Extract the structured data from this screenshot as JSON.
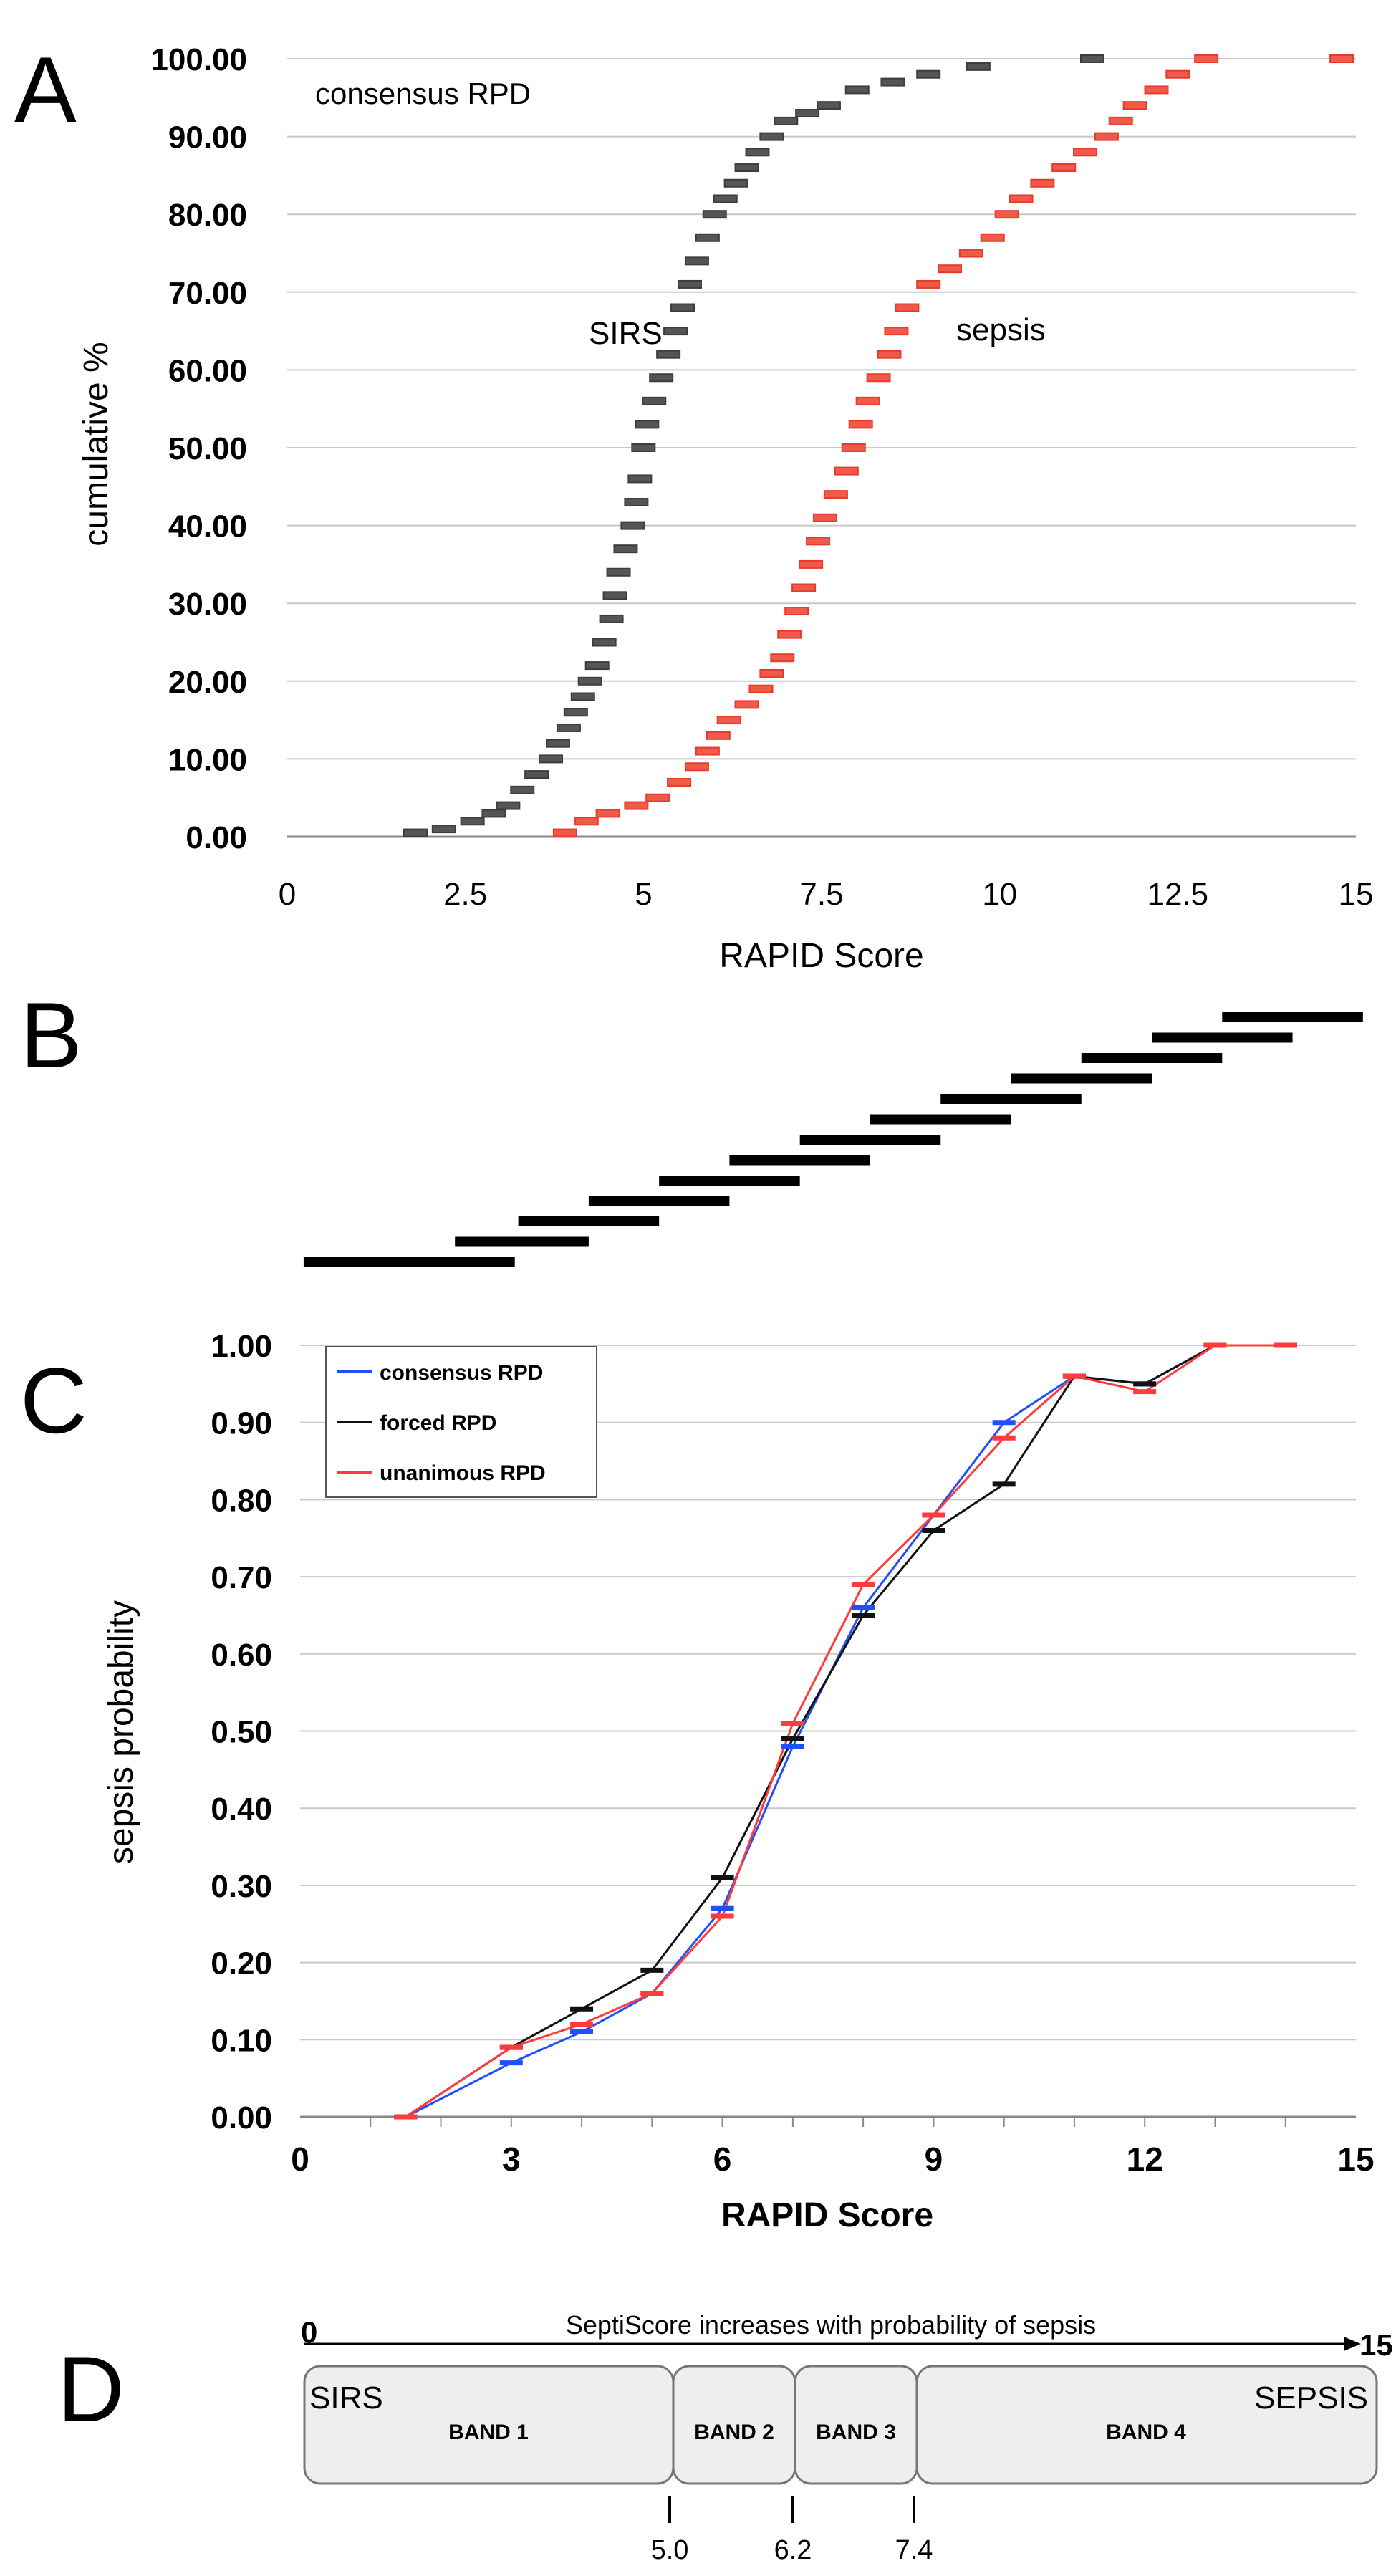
{
  "colors": {
    "sirs": "#3d3d3d",
    "sepsis": "#e83a2c",
    "consensus": "#1f4fff",
    "forced": "#111111",
    "unanimous": "#ff3b3b",
    "grid": "#c8c8c8",
    "band_fill": "#eeeeee"
  },
  "panels": {
    "A": "A",
    "B": "B",
    "C": "C",
    "D": "D"
  },
  "chart_data": [
    {
      "panel": "A",
      "type": "scatter",
      "title": "",
      "xlabel": "RAPID Score",
      "ylabel": "cumulative %",
      "xlim": [
        0,
        15
      ],
      "ylim": [
        0,
        100
      ],
      "x_ticks": [
        "0",
        "2.5",
        "5",
        "7.5",
        "10",
        "12.5",
        "15"
      ],
      "y_ticks": [
        "0.00",
        "10.00",
        "20.00",
        "30.00",
        "40.00",
        "50.00",
        "60.00",
        "70.00",
        "80.00",
        "90.00",
        "100.00"
      ],
      "grid": true,
      "annotations": {
        "corner": "consensus RPD",
        "sirs": "SIRS",
        "sepsis": "sepsis"
      },
      "series": [
        {
          "name": "SIRS",
          "points": [
            [
              1.8,
              0.5
            ],
            [
              2.2,
              1
            ],
            [
              2.6,
              2
            ],
            [
              2.9,
              3
            ],
            [
              3.1,
              4
            ],
            [
              3.3,
              6
            ],
            [
              3.5,
              8
            ],
            [
              3.7,
              10
            ],
            [
              3.8,
              12
            ],
            [
              3.95,
              14
            ],
            [
              4.05,
              16
            ],
            [
              4.15,
              18
            ],
            [
              4.25,
              20
            ],
            [
              4.35,
              22
            ],
            [
              4.45,
              25
            ],
            [
              4.55,
              28
            ],
            [
              4.6,
              31
            ],
            [
              4.65,
              34
            ],
            [
              4.75,
              37
            ],
            [
              4.85,
              40
            ],
            [
              4.9,
              43
            ],
            [
              4.95,
              46
            ],
            [
              5.0,
              50
            ],
            [
              5.05,
              53
            ],
            [
              5.15,
              56
            ],
            [
              5.25,
              59
            ],
            [
              5.35,
              62
            ],
            [
              5.45,
              65
            ],
            [
              5.55,
              68
            ],
            [
              5.65,
              71
            ],
            [
              5.75,
              74
            ],
            [
              5.9,
              77
            ],
            [
              6.0,
              80
            ],
            [
              6.15,
              82
            ],
            [
              6.3,
              84
            ],
            [
              6.45,
              86
            ],
            [
              6.6,
              88
            ],
            [
              6.8,
              90
            ],
            [
              7.0,
              92
            ],
            [
              7.3,
              93
            ],
            [
              7.6,
              94
            ],
            [
              8.0,
              96
            ],
            [
              8.5,
              97
            ],
            [
              9.0,
              98
            ],
            [
              9.7,
              99
            ],
            [
              11.3,
              100
            ]
          ]
        },
        {
          "name": "sepsis",
          "points": [
            [
              3.9,
              0.5
            ],
            [
              4.2,
              2
            ],
            [
              4.5,
              3
            ],
            [
              4.9,
              4
            ],
            [
              5.2,
              5
            ],
            [
              5.5,
              7
            ],
            [
              5.75,
              9
            ],
            [
              5.9,
              11
            ],
            [
              6.05,
              13
            ],
            [
              6.2,
              15
            ],
            [
              6.45,
              17
            ],
            [
              6.65,
              19
            ],
            [
              6.8,
              21
            ],
            [
              6.95,
              23
            ],
            [
              7.05,
              26
            ],
            [
              7.15,
              29
            ],
            [
              7.25,
              32
            ],
            [
              7.35,
              35
            ],
            [
              7.45,
              38
            ],
            [
              7.55,
              41
            ],
            [
              7.7,
              44
            ],
            [
              7.85,
              47
            ],
            [
              7.95,
              50
            ],
            [
              8.05,
              53
            ],
            [
              8.15,
              56
            ],
            [
              8.3,
              59
            ],
            [
              8.45,
              62
            ],
            [
              8.55,
              65
            ],
            [
              8.7,
              68
            ],
            [
              9.0,
              71
            ],
            [
              9.3,
              73
            ],
            [
              9.6,
              75
            ],
            [
              9.9,
              77
            ],
            [
              10.1,
              80
            ],
            [
              10.3,
              82
            ],
            [
              10.6,
              84
            ],
            [
              10.9,
              86
            ],
            [
              11.2,
              88
            ],
            [
              11.5,
              90
            ],
            [
              11.7,
              92
            ],
            [
              11.9,
              94
            ],
            [
              12.2,
              96
            ],
            [
              12.5,
              98
            ],
            [
              12.9,
              100
            ],
            [
              14.8,
              100
            ]
          ]
        }
      ]
    },
    {
      "panel": "B",
      "type": "bar",
      "title": "",
      "xlabel": "",
      "ylabel": "",
      "xlim": [
        0,
        15
      ],
      "segments": [
        [
          0.05,
          3.05
        ],
        [
          2.2,
          4.1
        ],
        [
          3.1,
          5.1
        ],
        [
          4.1,
          6.1
        ],
        [
          5.1,
          7.1
        ],
        [
          6.1,
          8.1
        ],
        [
          7.1,
          9.1
        ],
        [
          8.1,
          10.1
        ],
        [
          9.1,
          11.1
        ],
        [
          10.1,
          12.1
        ],
        [
          11.1,
          13.1
        ],
        [
          12.1,
          14.1
        ],
        [
          13.1,
          15.1
        ]
      ]
    },
    {
      "panel": "C",
      "type": "line",
      "title": "",
      "xlabel": "RAPID Score",
      "ylabel": "sepsis probability",
      "xlim": [
        0,
        15
      ],
      "ylim": [
        0,
        1
      ],
      "x_ticks": [
        "0",
        "3",
        "6",
        "9",
        "12",
        "15"
      ],
      "y_ticks": [
        "0.00",
        "0.10",
        "0.20",
        "0.30",
        "0.40",
        "0.50",
        "0.60",
        "0.70",
        "0.80",
        "0.90",
        "1.00"
      ],
      "grid": true,
      "legend_position": "top-left",
      "series": [
        {
          "name": "consensus RPD",
          "x": [
            1.5,
            3,
            4,
            5,
            6,
            7,
            8,
            9,
            10,
            11,
            12,
            13,
            14
          ],
          "values": [
            0.0,
            0.07,
            0.11,
            0.16,
            0.27,
            0.48,
            0.66,
            0.78,
            0.9,
            0.96,
            0.95,
            1.0,
            1.0
          ]
        },
        {
          "name": "forced RPD",
          "x": [
            1.5,
            3,
            4,
            5,
            6,
            7,
            8,
            9,
            10,
            11,
            12,
            13,
            14
          ],
          "values": [
            0.0,
            0.09,
            0.14,
            0.19,
            0.31,
            0.49,
            0.65,
            0.76,
            0.82,
            0.96,
            0.95,
            1.0,
            1.0
          ]
        },
        {
          "name": "unanimous RPD",
          "x": [
            1.5,
            3,
            4,
            5,
            6,
            7,
            8,
            9,
            10,
            11,
            12,
            13,
            14
          ],
          "values": [
            0.0,
            0.09,
            0.12,
            0.16,
            0.26,
            0.51,
            0.69,
            0.78,
            0.88,
            0.96,
            0.94,
            1.0,
            1.0
          ]
        }
      ]
    },
    {
      "panel": "D",
      "type": "diagram",
      "title": "SeptiScore increases with probability of sepsis",
      "start_label": "0",
      "end_label": "15",
      "left_label": "SIRS",
      "right_label": "SEPSIS",
      "bands": [
        {
          "label": "BAND 1",
          "from": 0,
          "to": 5.0
        },
        {
          "label": "BAND 2",
          "from": 5.0,
          "to": 6.2
        },
        {
          "label": "BAND 3",
          "from": 6.2,
          "to": 7.4
        },
        {
          "label": "BAND 4",
          "from": 7.4,
          "to": 15
        }
      ],
      "thresholds": [
        "5.0",
        "6.2",
        "7.4"
      ]
    }
  ]
}
